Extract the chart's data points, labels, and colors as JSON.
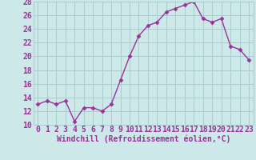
{
  "x": [
    0,
    1,
    2,
    3,
    4,
    5,
    6,
    7,
    8,
    9,
    10,
    11,
    12,
    13,
    14,
    15,
    16,
    17,
    18,
    19,
    20,
    21,
    22,
    23
  ],
  "y": [
    13,
    13.5,
    13,
    13.5,
    10.5,
    12.5,
    12.5,
    12,
    13,
    16.5,
    20,
    23,
    24.5,
    25,
    26.5,
    27,
    27.5,
    28,
    25.5,
    25,
    25.5,
    21.5,
    21,
    19.5
  ],
  "line_color": "#993399",
  "marker": "D",
  "marker_size": 2.5,
  "bg_color": "#cce8e8",
  "grid_color": "#aacccc",
  "xlabel": "Windchill (Refroidissement éolien,°C)",
  "ylim": [
    10,
    28
  ],
  "xlim_min": -0.5,
  "xlim_max": 23.5,
  "yticks": [
    10,
    12,
    14,
    16,
    18,
    20,
    22,
    24,
    26,
    28
  ],
  "xticks": [
    0,
    1,
    2,
    3,
    4,
    5,
    6,
    7,
    8,
    9,
    10,
    11,
    12,
    13,
    14,
    15,
    16,
    17,
    18,
    19,
    20,
    21,
    22,
    23
  ],
  "xlabel_fontsize": 7,
  "tick_fontsize": 7,
  "linewidth": 1.0
}
